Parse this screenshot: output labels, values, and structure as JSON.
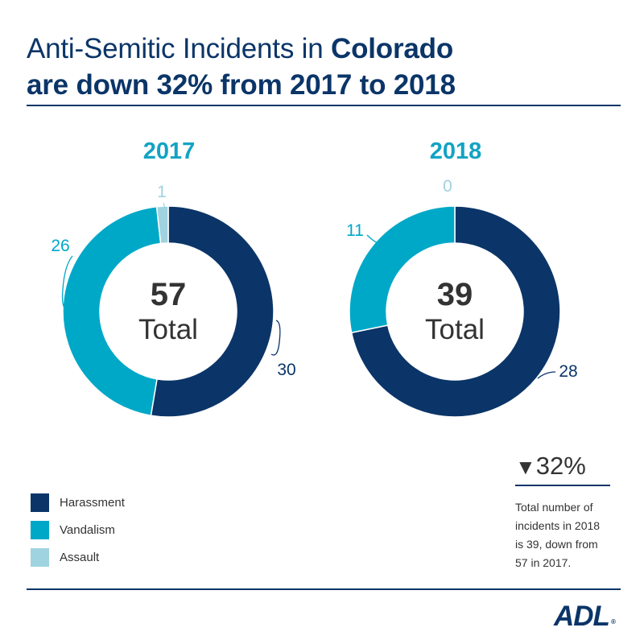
{
  "title": {
    "line1_prefix": "Anti-Semitic Incidents in ",
    "line1_emphasis": "Colorado",
    "line2": "are down 32% from 2017 to 2018"
  },
  "colors": {
    "harassment": "#0b3568",
    "vandalism": "#00a8c8",
    "assault": "#9fd3df",
    "rule": "#0b3568"
  },
  "chart_data": [
    {
      "type": "pie",
      "title": "2017",
      "categories": [
        "Harassment",
        "Vandalism",
        "Assault"
      ],
      "values": [
        30,
        26,
        1
      ],
      "center_value": "57",
      "center_label": "Total"
    },
    {
      "type": "pie",
      "title": "2018",
      "categories": [
        "Harassment",
        "Vandalism",
        "Assault"
      ],
      "values": [
        28,
        11,
        0
      ],
      "center_value": "39",
      "center_label": "Total"
    }
  ],
  "legend": {
    "position": "bottom-left",
    "items": [
      {
        "label": "Harassment",
        "color": "#0b3568"
      },
      {
        "label": "Vandalism",
        "color": "#00a8c8"
      },
      {
        "label": "Assault",
        "color": "#9fd3df"
      }
    ]
  },
  "change": {
    "value": "32%",
    "note": "Total number of incidents in 2018 is 39, down from 57 in 2017."
  },
  "logo": {
    "text": "ADL",
    "mark": "®"
  }
}
